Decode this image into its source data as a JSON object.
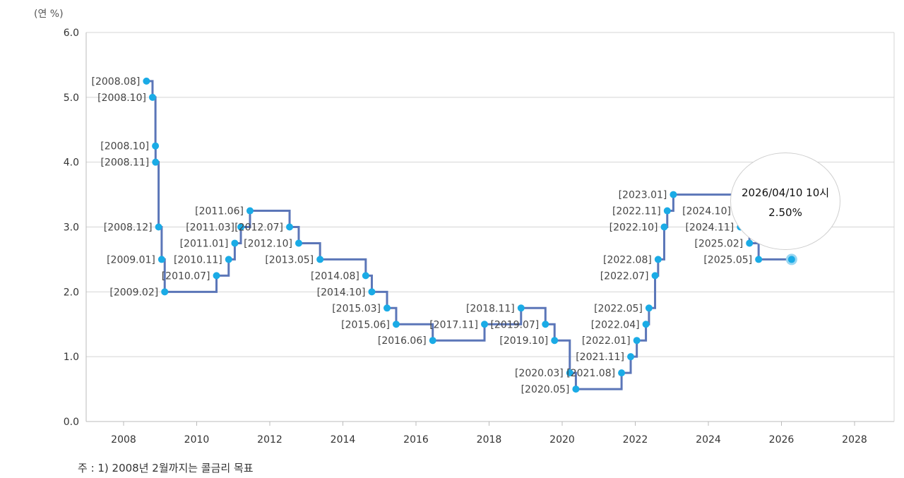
{
  "chart_data": {
    "type": "line",
    "step": true,
    "unit_label": "(연 %)",
    "ylim": [
      0,
      6
    ],
    "y_ticks": [
      "0.0",
      "1.0",
      "2.0",
      "3.0",
      "4.0",
      "5.0",
      "6.0"
    ],
    "xlim": [
      2007.0,
      2029.0
    ],
    "x_ticks": [
      "2008",
      "2010",
      "2012",
      "2014",
      "2016",
      "2018",
      "2020",
      "2022",
      "2024",
      "2026",
      "2028"
    ],
    "grid": "horizontal",
    "points": [
      {
        "date": "2008-08",
        "value": 5.25,
        "label": "[2008.08]"
      },
      {
        "date": "2008-10",
        "value": 5.0,
        "label": "[2008.10]"
      },
      {
        "date": "2008-10",
        "value": 4.25,
        "label": "[2008.10]"
      },
      {
        "date": "2008-11",
        "value": 4.0,
        "label": "[2008.11]"
      },
      {
        "date": "2008-12",
        "value": 3.0,
        "label": "[2008.12]"
      },
      {
        "date": "2009-01",
        "value": 2.5,
        "label": "[2009.01]"
      },
      {
        "date": "2009-02",
        "value": 2.0,
        "label": "[2009.02]"
      },
      {
        "date": "2010-07",
        "value": 2.25,
        "label": "[2010.07]"
      },
      {
        "date": "2010-11",
        "value": 2.5,
        "label": "[2010.11]"
      },
      {
        "date": "2011-01",
        "value": 2.75,
        "label": "[2011.01]"
      },
      {
        "date": "2011-03",
        "value": 3.0,
        "label": "[2011.03]"
      },
      {
        "date": "2011-06",
        "value": 3.25,
        "label": "[2011.06]"
      },
      {
        "date": "2012-07",
        "value": 3.0,
        "label": "[2012.07]"
      },
      {
        "date": "2012-10",
        "value": 2.75,
        "label": "[2012.10]"
      },
      {
        "date": "2013-05",
        "value": 2.5,
        "label": "[2013.05]"
      },
      {
        "date": "2014-08",
        "value": 2.25,
        "label": "[2014.08]"
      },
      {
        "date": "2014-10",
        "value": 2.0,
        "label": "[2014.10]"
      },
      {
        "date": "2015-03",
        "value": 1.75,
        "label": "[2015.03]"
      },
      {
        "date": "2015-06",
        "value": 1.5,
        "label": "[2015.06]"
      },
      {
        "date": "2016-06",
        "value": 1.25,
        "label": "[2016.06]"
      },
      {
        "date": "2017-11",
        "value": 1.5,
        "label": "[2017.11]"
      },
      {
        "date": "2018-11",
        "value": 1.75,
        "label": "[2018.11]"
      },
      {
        "date": "2019-07",
        "value": 1.5,
        "label": "[2019.07]"
      },
      {
        "date": "2019-10",
        "value": 1.25,
        "label": "[2019.10]"
      },
      {
        "date": "2020-03",
        "value": 0.75,
        "label": "[2020.03]"
      },
      {
        "date": "2020-05",
        "value": 0.5,
        "label": "[2020.05]"
      },
      {
        "date": "2021-08",
        "value": 0.75,
        "label": "[2021.08]"
      },
      {
        "date": "2021-11",
        "value": 1.0,
        "label": "[2021.11]"
      },
      {
        "date": "2022-01",
        "value": 1.25,
        "label": "[2022.01]"
      },
      {
        "date": "2022-04",
        "value": 1.5,
        "label": "[2022.04]"
      },
      {
        "date": "2022-05",
        "value": 1.75,
        "label": "[2022.05]"
      },
      {
        "date": "2022-07",
        "value": 2.25,
        "label": "[2022.07]"
      },
      {
        "date": "2022-08",
        "value": 2.5,
        "label": "[2022.08]"
      },
      {
        "date": "2022-10",
        "value": 3.0,
        "label": "[2022.10]"
      },
      {
        "date": "2022-11",
        "value": 3.25,
        "label": "[2022.11]"
      },
      {
        "date": "2023-01",
        "value": 3.5,
        "label": "[2023.01]"
      },
      {
        "date": "2024-10",
        "value": 3.25,
        "label": "[2024.10]"
      },
      {
        "date": "2024-11",
        "value": 3.0,
        "label": "[2024.11]"
      },
      {
        "date": "2025-02",
        "value": 2.75,
        "label": "[2025.02]"
      },
      {
        "date": "2025-05",
        "value": 2.5,
        "label": "[2025.05]"
      }
    ],
    "current": {
      "date": "2026-04-10",
      "value": 2.5
    },
    "tooltip": {
      "line1": "2026/04/10 10시",
      "line2": "2.50%"
    },
    "colors": {
      "line": "#5b76b8",
      "point": "#1aabe6",
      "grid": "#d4d4d4",
      "axis": "#bbbbbb"
    },
    "footnote": "주 : 1) 2008년 2월까지는 콜금리 목표"
  }
}
